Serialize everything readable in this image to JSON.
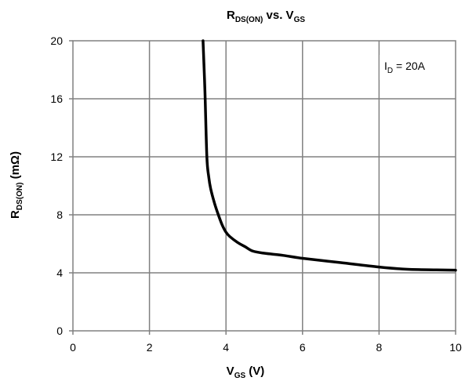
{
  "chart_data": {
    "type": "line",
    "title": {
      "main": "R",
      "main_sub": "DS(ON)",
      "rest": " vs. V",
      "rest_sub": "GS"
    },
    "xlabel": {
      "main": "V",
      "sub": "GS",
      "rest": " (V)"
    },
    "ylabel": {
      "main": "R",
      "sub": "DS(ON)",
      "rest": " (mΩ)"
    },
    "xlim": [
      0,
      10
    ],
    "ylim": [
      0,
      20
    ],
    "xticks": [
      0,
      2,
      4,
      6,
      8,
      10
    ],
    "yticks": [
      0,
      4,
      8,
      12,
      16,
      20
    ],
    "x_tick_labels": [
      "0",
      "2",
      "4",
      "6",
      "8",
      "10"
    ],
    "y_tick_labels": [
      "0",
      "4",
      "8",
      "12",
      "16",
      "20"
    ],
    "grid": true,
    "annotation": {
      "main": "I",
      "sub": "D",
      "rest": " = 20A"
    },
    "series": [
      {
        "color": "#000000",
        "x": [
          3.4,
          3.45,
          3.5,
          3.55,
          3.6,
          3.7,
          3.8,
          3.9,
          4.0,
          4.1,
          4.3,
          4.5,
          4.7,
          5.0,
          5.5,
          6.0,
          7.0,
          8.0,
          8.7,
          9.5,
          10.0
        ],
        "y": [
          20.0,
          16.5,
          12.0,
          10.6,
          9.8,
          8.8,
          8.0,
          7.3,
          6.8,
          6.5,
          6.1,
          5.8,
          5.5,
          5.35,
          5.2,
          5.0,
          4.7,
          4.4,
          4.25,
          4.2,
          4.18
        ]
      }
    ]
  }
}
